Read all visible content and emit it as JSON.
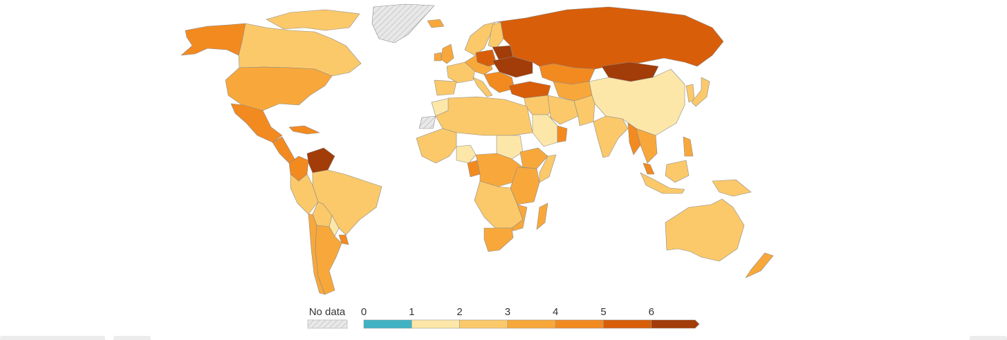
{
  "legend": {
    "no_data_label": "No data",
    "ticks": [
      "0",
      "1",
      "2",
      "3",
      "4",
      "5",
      "6"
    ],
    "bins": [
      {
        "from": 0,
        "to": 1,
        "color": "#3fb3c4"
      },
      {
        "from": 1,
        "to": 2,
        "color": "#fde7a8"
      },
      {
        "from": 2,
        "to": 3,
        "color": "#fbc96a"
      },
      {
        "from": 3,
        "to": 4,
        "color": "#f8a83a"
      },
      {
        "from": 4,
        "to": 5,
        "color": "#f28a20"
      },
      {
        "from": 5,
        "to": 6,
        "color": "#d85e0a"
      },
      {
        "from": 6,
        "to": null,
        "color": "#a23c08"
      }
    ]
  },
  "colors": {
    "no_data_fill": "#e8e8e8",
    "no_data_hatch": "#bcbcbc",
    "border": "#8a8a8a"
  },
  "regions": [
    {
      "name": "alaska",
      "bin": 4
    },
    {
      "name": "canada",
      "bin": 2
    },
    {
      "name": "canadian-arctic-islands",
      "bin": 2
    },
    {
      "name": "greenland",
      "bin": null
    },
    {
      "name": "united-states",
      "bin": 3
    },
    {
      "name": "mexico",
      "bin": 4
    },
    {
      "name": "central-america",
      "bin": 4
    },
    {
      "name": "cuba",
      "bin": 4
    },
    {
      "name": "venezuela",
      "bin": 6
    },
    {
      "name": "colombia",
      "bin": 4
    },
    {
      "name": "brazil",
      "bin": 2
    },
    {
      "name": "peru",
      "bin": 2
    },
    {
      "name": "bolivia",
      "bin": 2
    },
    {
      "name": "paraguay",
      "bin": 1
    },
    {
      "name": "chile",
      "bin": 3
    },
    {
      "name": "argentina",
      "bin": 3
    },
    {
      "name": "uruguay",
      "bin": 4
    },
    {
      "name": "iceland",
      "bin": 3
    },
    {
      "name": "scandinavia",
      "bin": 2
    },
    {
      "name": "finland",
      "bin": 2
    },
    {
      "name": "united-kingdom",
      "bin": 3
    },
    {
      "name": "ireland",
      "bin": 3
    },
    {
      "name": "western-europe",
      "bin": 2
    },
    {
      "name": "iberia",
      "bin": 2
    },
    {
      "name": "italy",
      "bin": 2
    },
    {
      "name": "central-europe",
      "bin": 3
    },
    {
      "name": "poland",
      "bin": 5
    },
    {
      "name": "ukraine",
      "bin": 6
    },
    {
      "name": "belarus",
      "bin": 6
    },
    {
      "name": "balkans",
      "bin": 4
    },
    {
      "name": "turkey",
      "bin": 5
    },
    {
      "name": "russia",
      "bin": 5
    },
    {
      "name": "kazakhstan",
      "bin": 4
    },
    {
      "name": "central-asia",
      "bin": 3
    },
    {
      "name": "mongolia",
      "bin": 6
    },
    {
      "name": "china",
      "bin": 1
    },
    {
      "name": "korea",
      "bin": 2
    },
    {
      "name": "japan",
      "bin": 2
    },
    {
      "name": "middle-east",
      "bin": 2
    },
    {
      "name": "saudi-arabia",
      "bin": 1
    },
    {
      "name": "oman-yemen",
      "bin": 4
    },
    {
      "name": "iran",
      "bin": 2
    },
    {
      "name": "afghanistan-pakistan",
      "bin": 2
    },
    {
      "name": "india",
      "bin": 2
    },
    {
      "name": "myanmar",
      "bin": 4
    },
    {
      "name": "southeast-asia",
      "bin": 3
    },
    {
      "name": "malaysia",
      "bin": 4
    },
    {
      "name": "indonesia",
      "bin": 2
    },
    {
      "name": "borneo",
      "bin": 2
    },
    {
      "name": "new-guinea",
      "bin": 2
    },
    {
      "name": "philippines",
      "bin": 3
    },
    {
      "name": "australia",
      "bin": 2
    },
    {
      "name": "new-zealand",
      "bin": 3
    },
    {
      "name": "north-africa",
      "bin": 2
    },
    {
      "name": "morocco",
      "bin": 1
    },
    {
      "name": "western-sahara",
      "bin": null
    },
    {
      "name": "west-africa",
      "bin": 2
    },
    {
      "name": "nigeria",
      "bin": 1
    },
    {
      "name": "central-africa",
      "bin": 3
    },
    {
      "name": "cameroon",
      "bin": 4
    },
    {
      "name": "sudan",
      "bin": 1
    },
    {
      "name": "ethiopia",
      "bin": 3
    },
    {
      "name": "somalia",
      "bin": 2
    },
    {
      "name": "east-africa",
      "bin": 3
    },
    {
      "name": "southern-africa",
      "bin": 2
    },
    {
      "name": "south-africa",
      "bin": 3
    },
    {
      "name": "mozambique",
      "bin": 3
    },
    {
      "name": "madagascar",
      "bin": 3
    }
  ]
}
